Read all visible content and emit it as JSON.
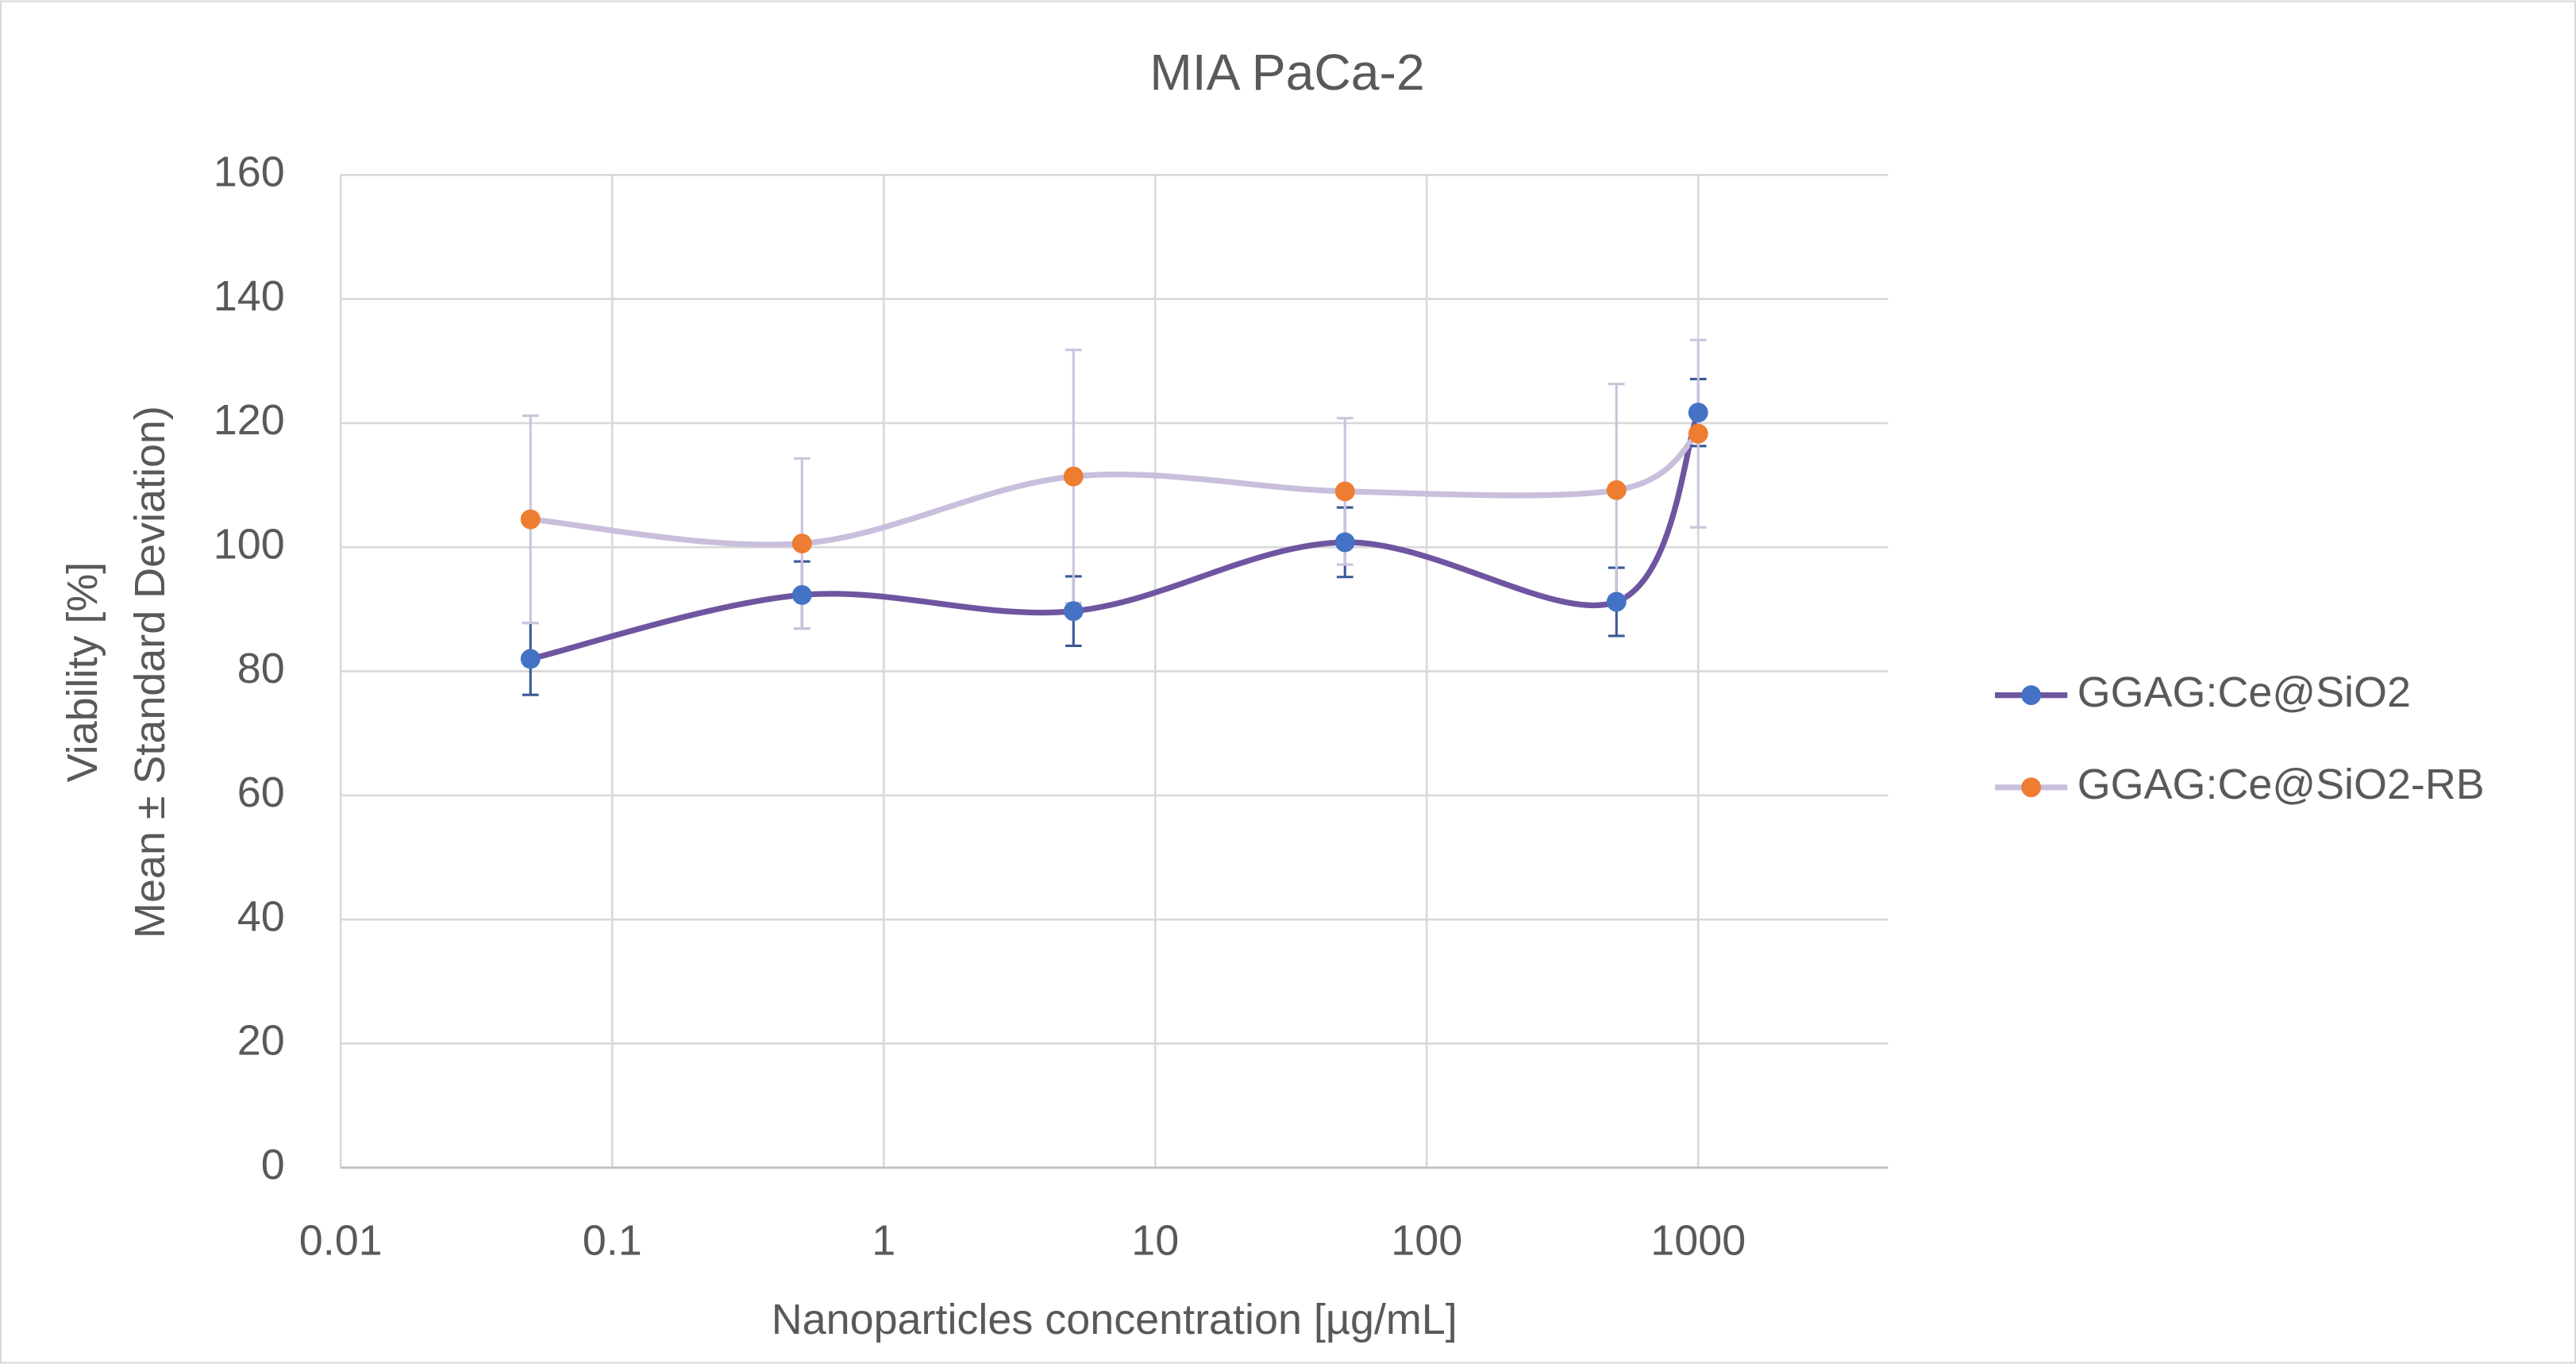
{
  "chart_data": {
    "type": "line",
    "title": "MIA PaCa-2",
    "x_label": "Nanoparticles concentration [µg/mL]",
    "y_label": [
      "Viability [%]",
      "Mean ± Standard Deviation)"
    ],
    "x": [
      0.05,
      0.5,
      5,
      50,
      500,
      1000
    ],
    "series": [
      {
        "name": "GGAG:Ce@SiO2",
        "color": "#6f55a0",
        "marker_color": "#4472c4",
        "error_color": "#3a5a94",
        "values": [
          82,
          92.3,
          89.7,
          100.8,
          91.2,
          121.7
        ],
        "errors": [
          5.8,
          5.4,
          5.6,
          5.6,
          5.5,
          5.4
        ]
      },
      {
        "name": "GGAG:Ce@SiO2-RB",
        "color": "#c9bfdc",
        "marker_color": "#ed7d31",
        "error_color": "#cac4dc",
        "values": [
          104.5,
          100.6,
          111.4,
          109,
          109.2,
          118.3
        ],
        "errors": [
          16.7,
          13.7,
          20.4,
          11.8,
          17.1,
          15.1
        ]
      }
    ],
    "xscale": "log",
    "xlim": [
      0.01,
      5000
    ],
    "xticks": [
      0.01,
      0.1,
      1,
      10,
      100,
      1000
    ],
    "ylim": [
      0,
      160
    ],
    "yticks": [
      0,
      20,
      40,
      60,
      80,
      100,
      120,
      140,
      160
    ],
    "grid": true,
    "smooth": true,
    "legend": "right"
  }
}
